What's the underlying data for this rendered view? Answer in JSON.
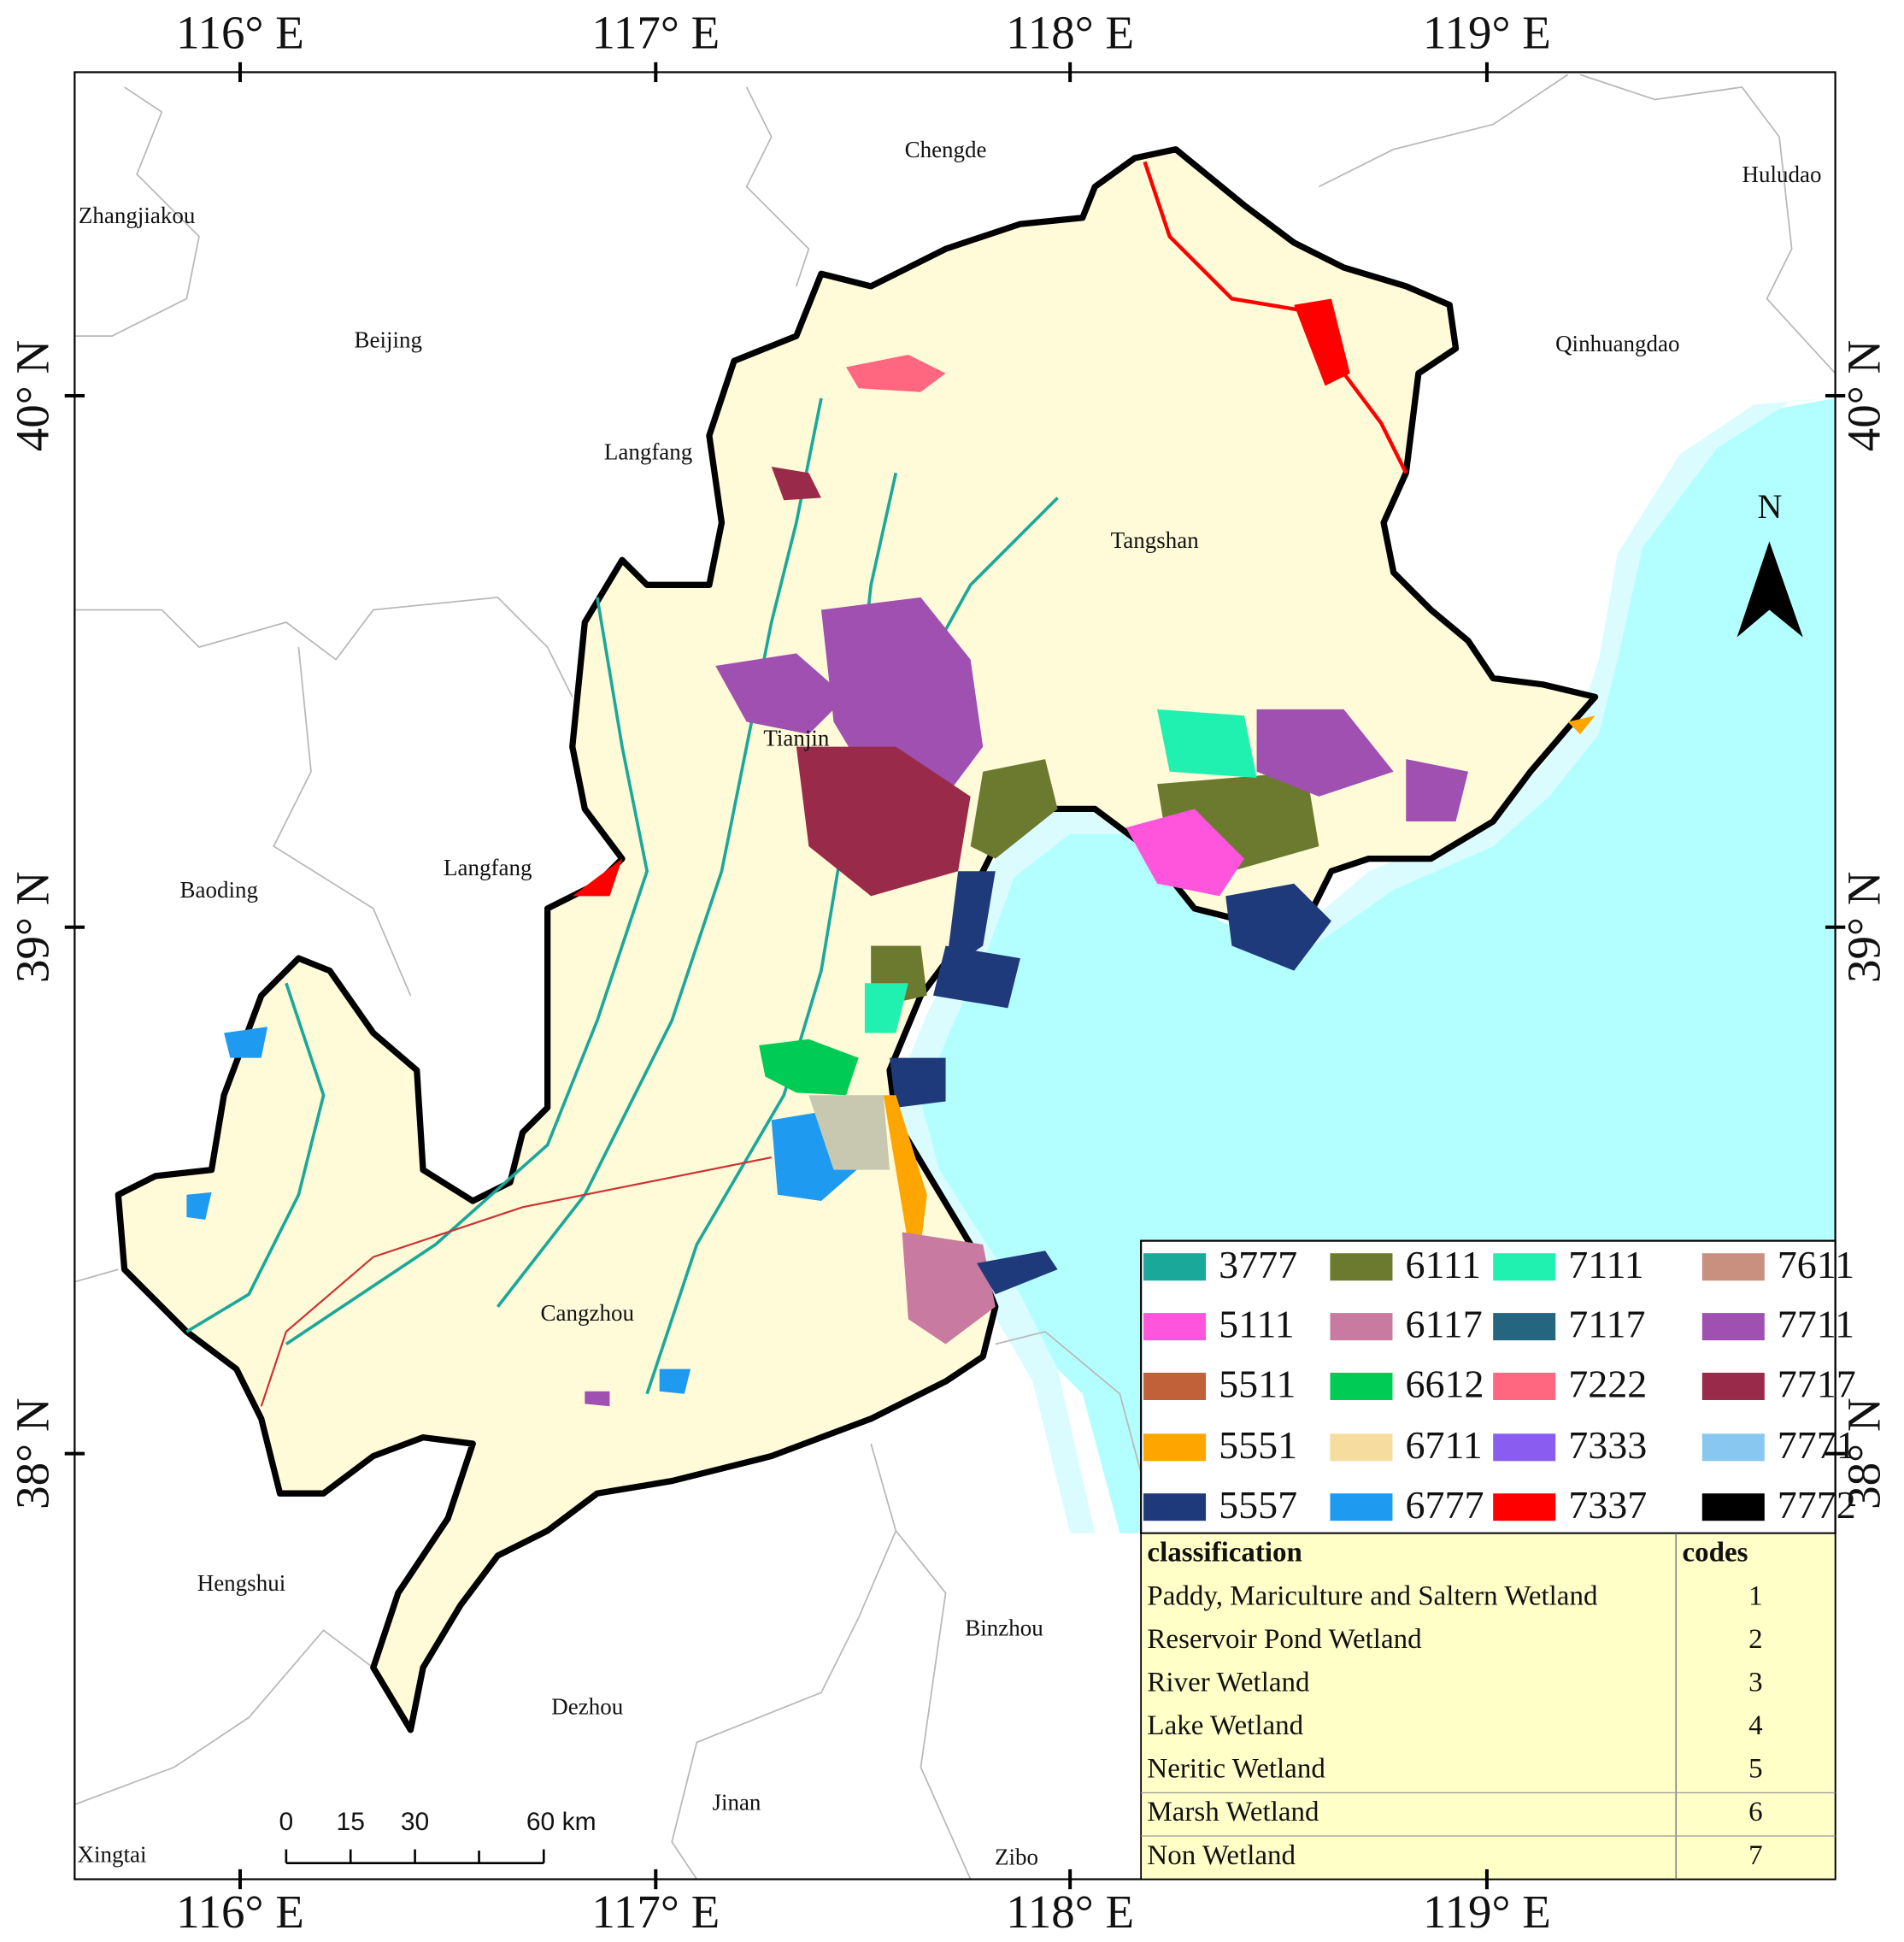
{
  "longitude_labels": [
    "116° E",
    "117° E",
    "118° E",
    "119° E"
  ],
  "latitude_labels": [
    "40° N",
    "39° N",
    "38° N"
  ],
  "places": [
    "Chengde",
    "Huludao",
    "Zhangjiakou",
    "Beijing",
    "Qinhuangdao",
    "Langfang",
    "Tangshan",
    "Tianjin",
    "Langfang",
    "Baoding",
    "Cangzhou",
    "Hengshui",
    "Binzhou",
    "Dezhou",
    "Jinan",
    "Xingtai",
    "Zibo"
  ],
  "north_arrow": "N",
  "scale_bar": {
    "ticks": [
      0,
      15,
      30,
      {
        "value": 60,
        "label": "60 km"
      }
    ]
  },
  "legend": [
    {
      "code": "3777",
      "color": "#1aa89a"
    },
    {
      "code": "5111",
      "color": "#ff55dd"
    },
    {
      "code": "5511",
      "color": "#c0613a"
    },
    {
      "code": "5551",
      "color": "#ffa500"
    },
    {
      "code": "5557",
      "color": "#1f3a7a"
    },
    {
      "code": "6111",
      "color": "#6b7a2f"
    },
    {
      "code": "6117",
      "color": "#c87aa0"
    },
    {
      "code": "6612",
      "color": "#00cc55"
    },
    {
      "code": "6711",
      "color": "#f7dca0"
    },
    {
      "code": "6777",
      "color": "#1e9bf0"
    },
    {
      "code": "7111",
      "color": "#20f0b0"
    },
    {
      "code": "7117",
      "color": "#246680"
    },
    {
      "code": "7222",
      "color": "#ff6680"
    },
    {
      "code": "7333",
      "color": "#8a5cf0"
    },
    {
      "code": "7337",
      "color": "#ff0000"
    },
    {
      "code": "7611",
      "color": "#c99080"
    },
    {
      "code": "7711",
      "color": "#a050b0"
    },
    {
      "code": "7717",
      "color": "#9a2a4a"
    },
    {
      "code": "7771",
      "color": "#88c8f0"
    },
    {
      "code": "7772",
      "color": "#000000"
    }
  ],
  "classification_table": {
    "header": [
      "classification",
      "codes"
    ],
    "rows": [
      [
        "Paddy, Mariculture and Saltern Wetland",
        "1"
      ],
      [
        "Reservoir Pond Wetland",
        "2"
      ],
      [
        "River Wetland",
        "3"
      ],
      [
        "Lake Wetland",
        "4"
      ],
      [
        "Neritic Wetland",
        "5"
      ],
      [
        "Marsh Wetland",
        "6"
      ],
      [
        "Non Wetland",
        "7"
      ]
    ]
  }
}
